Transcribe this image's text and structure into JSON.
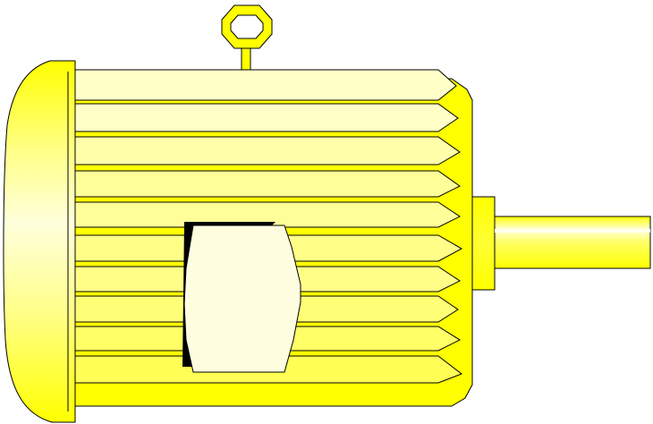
{
  "title": "",
  "colors": {
    "background": "#ffffff",
    "outline": "#000000",
    "yellow_bright": "#ffff00",
    "yellow_mid": "#ffff55",
    "yellow_light": "#ffff99",
    "yellow_pale": "#ffffc8",
    "yellow_paler": "#ffffdc",
    "terminal_box": "#fffde0",
    "shadow": "#000000"
  },
  "parts": [
    "lifting-eye",
    "end-bell",
    "cooling-fins",
    "motor-frame-body",
    "terminal-box",
    "shaft-bearing-hub",
    "output-shaft"
  ]
}
